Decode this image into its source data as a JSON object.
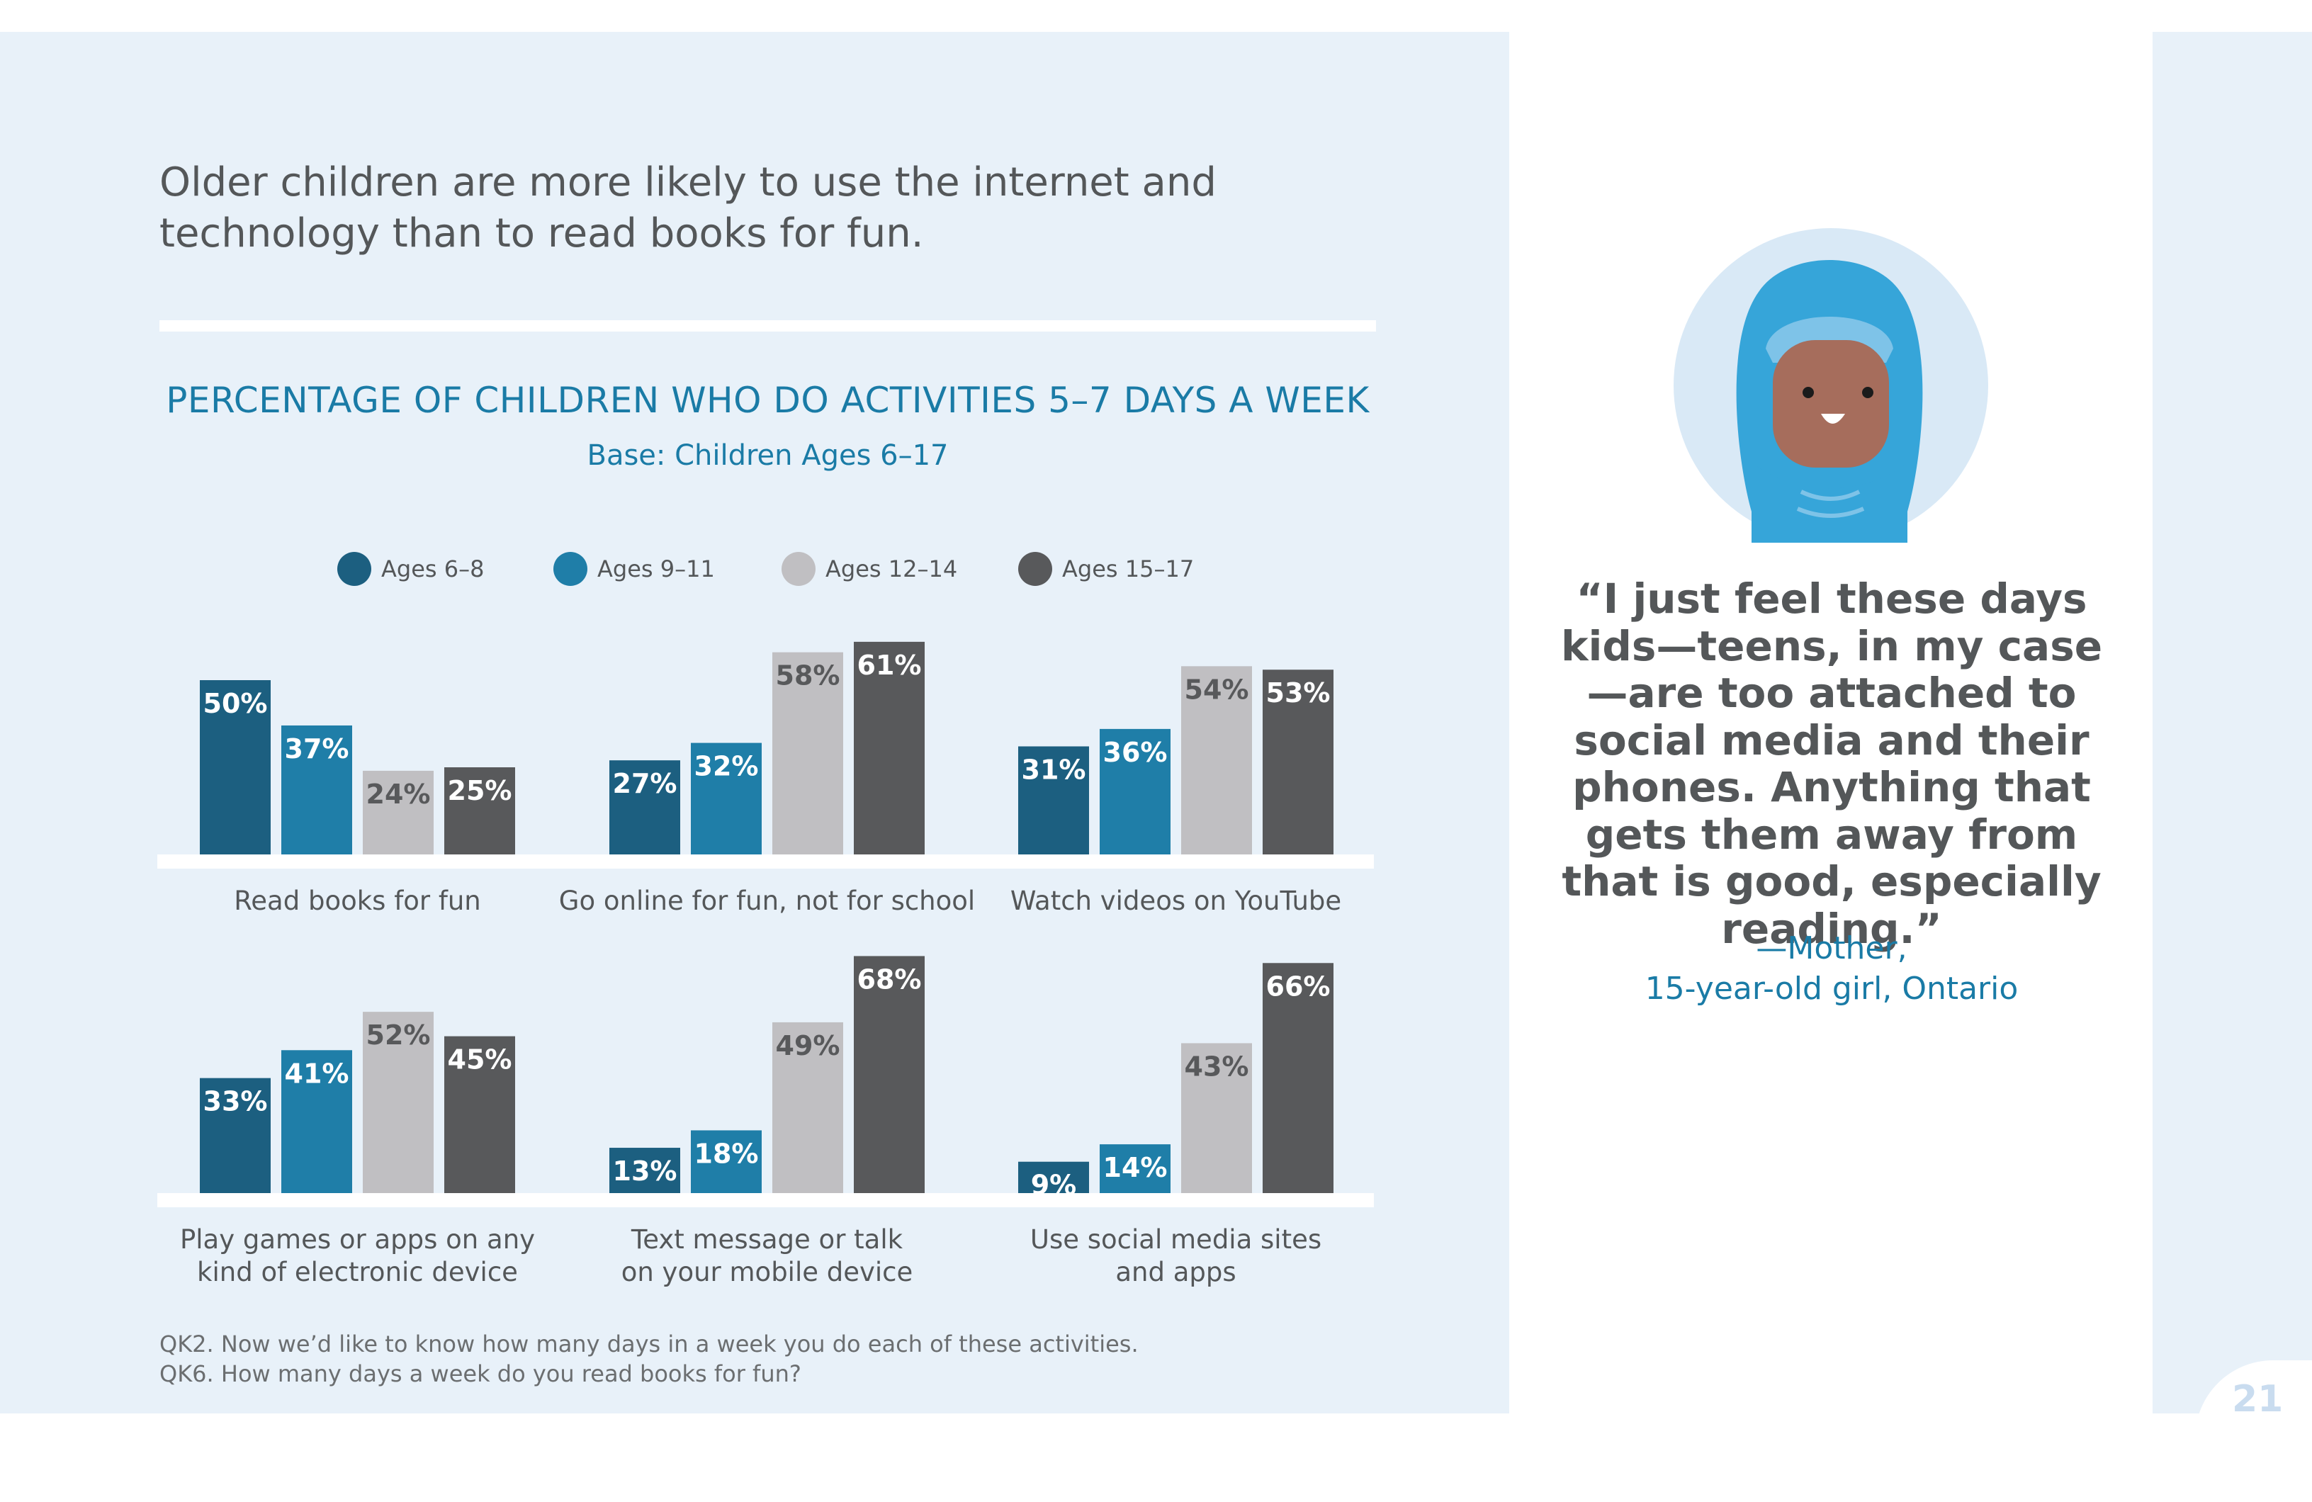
{
  "page": {
    "headline": "Older children are more likely to use the internet and technology than to read books for fun.",
    "page_number": "21"
  },
  "chart_data": {
    "type": "bar",
    "title": "PERCENTAGE OF CHILDREN WHO DO ACTIVITIES 5–7 DAYS A WEEK",
    "subtitle": "Base: Children Ages 6–17",
    "series": [
      {
        "name": "Ages 6–8",
        "color": "#1c5f80"
      },
      {
        "name": "Ages 9–11",
        "color": "#1f7ea8"
      },
      {
        "name": "Ages 12–14",
        "color": "#c0bfc2"
      },
      {
        "name": "Ages 15–17",
        "color": "#58595b"
      }
    ],
    "panels": [
      {
        "category": "Read books for fun",
        "values": [
          50,
          37,
          24,
          25
        ],
        "labels": [
          "50%",
          "37%",
          "24%",
          "25%"
        ]
      },
      {
        "category": "Go online for fun, not for school",
        "values": [
          27,
          32,
          58,
          61
        ],
        "labels": [
          "27%",
          "32%",
          "58%",
          "61%"
        ]
      },
      {
        "category": "Watch videos on YouTube",
        "values": [
          31,
          36,
          54,
          53
        ],
        "labels": [
          "31%",
          "36%",
          "54%",
          "53%"
        ]
      },
      {
        "category": "Play games or apps on any kind of electronic device",
        "category_lines": [
          "Play games or apps on any",
          "kind of electronic device"
        ],
        "values": [
          33,
          41,
          52,
          45
        ],
        "labels": [
          "33%",
          "41%",
          "52%",
          "45%"
        ]
      },
      {
        "category": "Text message or talk on your mobile device",
        "category_lines": [
          "Text message or talk",
          "on your mobile device"
        ],
        "values": [
          13,
          18,
          49,
          68
        ],
        "labels": [
          "13%",
          "18%",
          "49%",
          "68%"
        ]
      },
      {
        "category": "Use social media sites and apps",
        "category_lines": [
          "Use social media sites",
          "and apps"
        ],
        "values": [
          9,
          14,
          43,
          66
        ],
        "labels": [
          "9%",
          "14%",
          "43%",
          "66%"
        ]
      }
    ],
    "ylim": [
      0,
      70
    ],
    "grid": false,
    "legend": "top"
  },
  "footnotes": [
    "QK2. Now we’d like to know how many days in a week you do each of these activities.",
    "QK6. How many days a week do you read books for fun?"
  ],
  "sidebar": {
    "quote": "“I just feel these days kids—teens, in my case—are too attached to social media and their phones. Anything that gets them away from that is good, especially reading.”",
    "attribution_line1": "—Mother,",
    "attribution_line2": "15-year-old girl, Ontario"
  }
}
